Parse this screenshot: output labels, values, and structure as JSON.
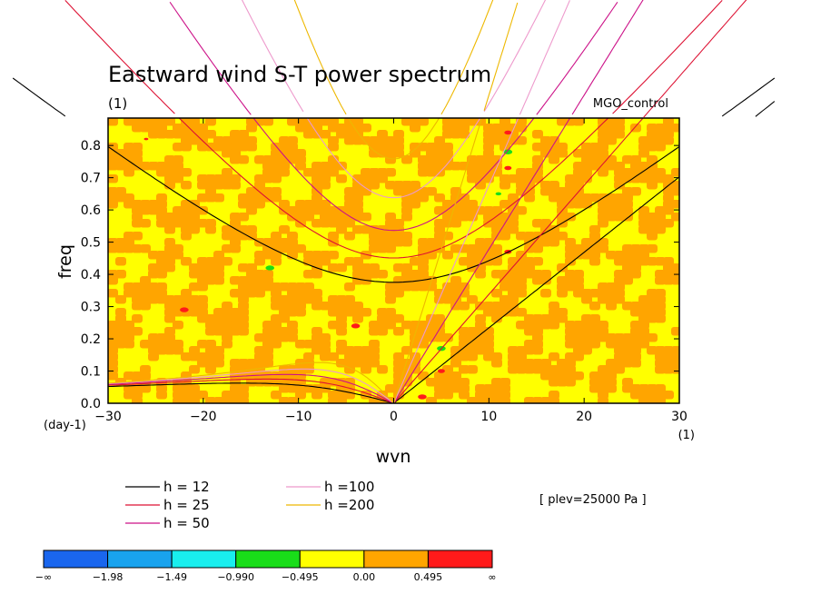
{
  "chart_data": {
    "type": "heatmap",
    "title": "Eastward wind S-T power spectrum",
    "title_units": "(1)",
    "dataset": "MGO_control",
    "xlabel": "wvn",
    "ylabel": "freq",
    "x_units": "(1)",
    "y_units": "(day-1)",
    "xlim": [
      -30,
      30
    ],
    "ylim": [
      0.0,
      0.885
    ],
    "x_ticks": [
      -30,
      -20,
      -10,
      0,
      10,
      20,
      30
    ],
    "x_tick_labels": [
      "−30",
      "−20",
      "−10",
      "0",
      "10",
      "20",
      "30"
    ],
    "y_ticks": [
      0.0,
      0.1,
      0.2,
      0.3,
      0.4,
      0.5,
      0.6,
      0.7,
      0.8
    ],
    "y_tick_labels": [
      "0.0",
      "0.1",
      "0.2",
      "0.3",
      "0.4",
      "0.5",
      "0.6",
      "0.7",
      "0.8"
    ],
    "annotation": "[ plev=25000 Pa ]",
    "dispersion_curves": [
      {
        "label": "h = 12",
        "h": 12,
        "color": "#000000"
      },
      {
        "label": "h = 25",
        "h": 25,
        "color": "#dd1133"
      },
      {
        "label": "h = 50",
        "h": 50,
        "color": "#cc1188"
      },
      {
        "label": "h =100",
        "h": 100,
        "color": "#ee99cc"
      },
      {
        "label": "h =200",
        "h": 200,
        "color": "#eeb800"
      }
    ],
    "colorbar": {
      "colors": [
        "#1a66ee",
        "#19a3ee",
        "#19eeee",
        "#19dd19",
        "#ffff00",
        "#ffa500",
        "#ff1a1a"
      ],
      "labels": [
        "−∞",
        "−1.98",
        "−1.49",
        "−0.990",
        "−0.495",
        "0.00",
        "0.495",
        "∞"
      ]
    },
    "field_description": "log power values mostly between -0.495 and 0.495 (yellow/orange), with sparse higher (red) and lower (green) patches"
  }
}
